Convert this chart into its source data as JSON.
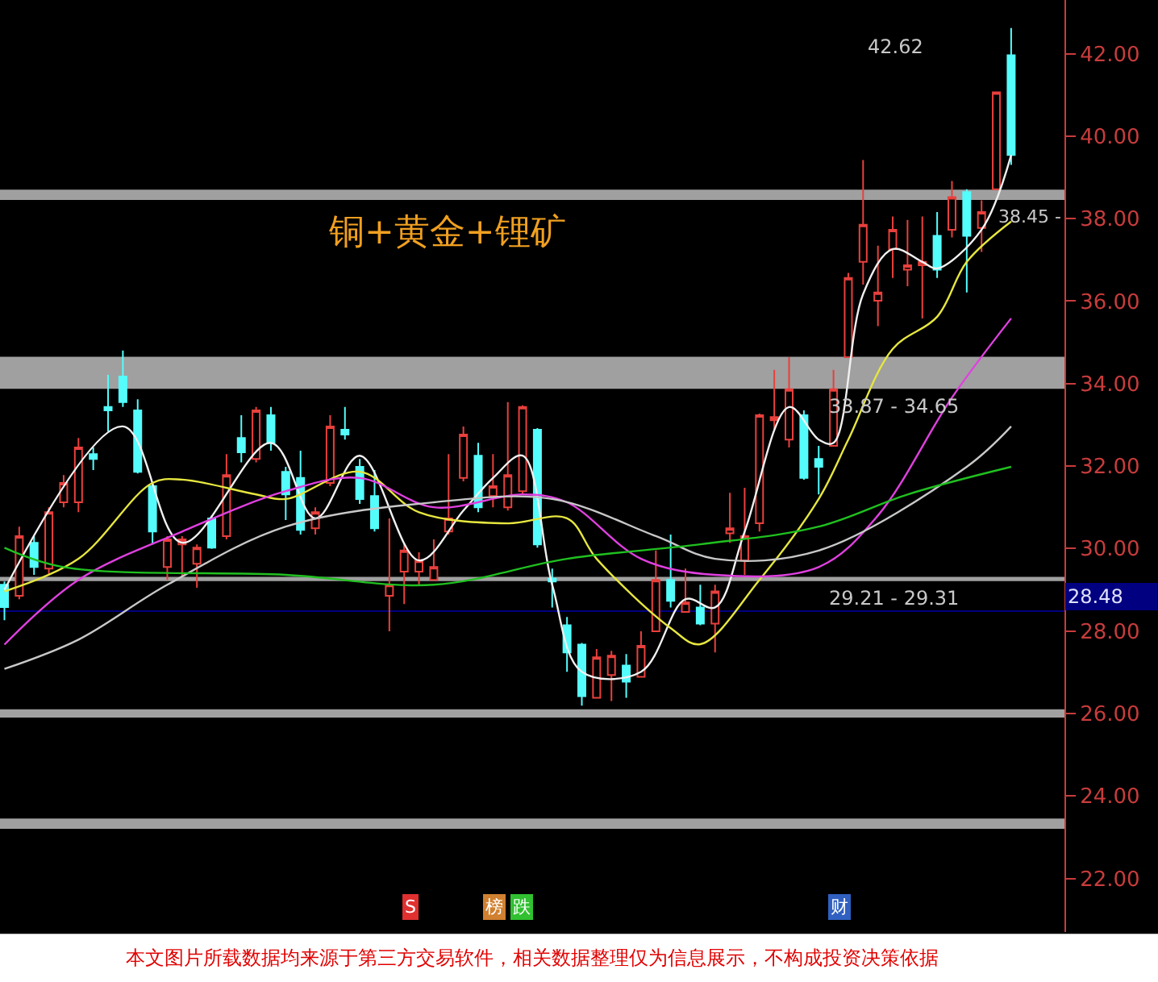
{
  "chart_data": {
    "type": "candlestick",
    "title": "铜+黄金+锂矿",
    "categories": [
      null,
      null,
      null,
      null,
      null,
      null,
      null,
      null,
      null,
      null,
      null,
      null,
      null,
      null,
      null,
      null,
      null,
      null,
      null,
      null,
      null,
      null,
      null,
      null,
      null,
      null,
      null,
      null,
      null,
      null,
      null,
      null,
      null,
      null,
      null,
      null,
      null,
      null,
      null,
      null,
      null,
      null,
      null,
      null,
      null,
      null,
      null,
      null,
      null,
      null,
      null,
      null,
      null,
      null,
      null,
      null,
      null,
      null,
      null,
      null,
      null,
      null,
      null,
      null,
      null,
      null,
      null,
      null,
      null
    ],
    "ohlc": [
      [
        29.12,
        29.2,
        28.26,
        28.58
      ],
      [
        28.85,
        30.53,
        28.77,
        30.3
      ],
      [
        30.14,
        30.3,
        29.36,
        29.55
      ],
      [
        29.51,
        31.0,
        29.36,
        30.88
      ],
      [
        31.12,
        31.78,
        31.0,
        31.59
      ],
      [
        31.12,
        32.68,
        30.88,
        32.45
      ],
      [
        32.29,
        32.45,
        31.9,
        32.17
      ],
      [
        33.43,
        34.21,
        32.84,
        33.35
      ],
      [
        34.17,
        34.8,
        33.43,
        33.55
      ],
      [
        33.35,
        33.62,
        31.82,
        31.86
      ],
      [
        31.51,
        31.59,
        30.1,
        30.41
      ],
      [
        29.55,
        30.3,
        29.24,
        30.22
      ],
      [
        30.1,
        30.3,
        29.32,
        30.22
      ],
      [
        29.63,
        30.1,
        29.05,
        30.02
      ],
      [
        30.73,
        30.8,
        29.99,
        30.02
      ],
      [
        30.3,
        32.29,
        30.22,
        31.78
      ],
      [
        32.68,
        33.23,
        32.09,
        32.33
      ],
      [
        32.17,
        33.43,
        32.09,
        33.35
      ],
      [
        33.23,
        33.43,
        32.37,
        32.56
      ],
      [
        31.86,
        31.98,
        30.69,
        31.31
      ],
      [
        31.71,
        32.37,
        30.34,
        30.45
      ],
      [
        30.49,
        31.0,
        30.34,
        30.88
      ],
      [
        31.59,
        33.23,
        31.51,
        32.96
      ],
      [
        32.88,
        33.43,
        32.64,
        32.76
      ],
      [
        31.98,
        32.17,
        31.08,
        31.2
      ],
      [
        31.27,
        31.9,
        30.41,
        30.49
      ],
      [
        28.85,
        30.73,
        27.99,
        29.12
      ],
      [
        29.44,
        30.14,
        28.65,
        29.95
      ],
      [
        29.44,
        29.91,
        29.12,
        29.71
      ],
      [
        29.24,
        30.22,
        29.24,
        29.55
      ],
      [
        30.41,
        32.29,
        30.34,
        30.73
      ],
      [
        31.71,
        32.96,
        31.63,
        32.76
      ],
      [
        32.25,
        32.56,
        30.88,
        31.0
      ],
      [
        31.27,
        32.29,
        31.0,
        31.51
      ],
      [
        31.0,
        33.55,
        30.92,
        31.78
      ],
      [
        31.39,
        33.47,
        31.31,
        33.43
      ],
      [
        32.88,
        32.92,
        30.02,
        30.1
      ],
      [
        29.27,
        29.51,
        28.57,
        29.2
      ],
      [
        28.14,
        28.34,
        27.01,
        27.48
      ],
      [
        27.67,
        27.71,
        26.19,
        26.42
      ],
      [
        26.38,
        27.56,
        26.38,
        27.36
      ],
      [
        26.93,
        27.52,
        26.3,
        27.4
      ],
      [
        27.16,
        27.44,
        26.38,
        26.77
      ],
      [
        26.89,
        27.99,
        26.89,
        27.64
      ],
      [
        27.99,
        29.95,
        27.99,
        29.24
      ],
      [
        29.24,
        30.34,
        28.57,
        28.73
      ],
      [
        28.46,
        29.51,
        28.46,
        28.69
      ],
      [
        28.57,
        29.12,
        28.14,
        28.18
      ],
      [
        28.18,
        29.12,
        27.48,
        28.96
      ],
      [
        30.37,
        31.35,
        30.14,
        30.49
      ],
      [
        29.71,
        31.47,
        29.36,
        30.3
      ],
      [
        30.61,
        33.27,
        30.41,
        33.23
      ],
      [
        33.11,
        34.33,
        32.88,
        33.19
      ],
      [
        32.64,
        34.64,
        32.45,
        33.86
      ],
      [
        33.23,
        33.35,
        31.67,
        31.71
      ],
      [
        32.17,
        32.49,
        31.31,
        31.98
      ],
      [
        32.49,
        34.33,
        32.49,
        33.86
      ],
      [
        34.64,
        36.68,
        34.64,
        36.56
      ],
      [
        36.95,
        39.42,
        36.4,
        37.85
      ],
      [
        36.01,
        37.34,
        35.39,
        36.21
      ],
      [
        37.26,
        38.05,
        36.56,
        37.73
      ],
      [
        36.76,
        37.97,
        36.36,
        36.87
      ],
      [
        36.87,
        38.05,
        35.58,
        36.95
      ],
      [
        37.58,
        38.16,
        36.56,
        36.76
      ],
      [
        37.73,
        38.91,
        37.54,
        38.52
      ],
      [
        38.64,
        38.71,
        36.21,
        37.58
      ],
      [
        37.77,
        38.44,
        37.19,
        38.16
      ],
      [
        38.71,
        41.06,
        38.71,
        41.06
      ],
      [
        41.96,
        42.62,
        39.3,
        39.54
      ]
    ],
    "series": [
      {
        "type": "line",
        "color": "#f0f0f0",
        "values": [
          29.0,
          null,
          null,
          null,
          null,
          null,
          null,
          null,
          32.96,
          null,
          null,
          null,
          30.14,
          null,
          null,
          null,
          null,
          null,
          32.56,
          null,
          null,
          30.73,
          null,
          null,
          32.25,
          null,
          null,
          null,
          29.71,
          null,
          null,
          30.92,
          null,
          31.71,
          null,
          32.25,
          null,
          29.12,
          null,
          27.01,
          null,
          null,
          null,
          27.01,
          null,
          null,
          28.77,
          null,
          28.57,
          null,
          30.41,
          null,
          null,
          33.43,
          null,
          32.64,
          32.56,
          null,
          36.17,
          null,
          37.26,
          null,
          36.95,
          36.79,
          null,
          null,
          37.73,
          null,
          39.54
        ]
      },
      {
        "type": "line",
        "color": "#e6e640",
        "values": [
          28.96,
          null,
          null,
          null,
          null,
          29.75,
          null,
          null,
          null,
          null,
          31.59,
          null,
          31.67,
          null,
          null,
          null,
          null,
          31.31,
          null,
          31.2,
          null,
          null,
          null,
          null,
          31.86,
          null,
          null,
          null,
          30.88,
          null,
          null,
          null,
          null,
          null,
          30.61,
          null,
          null,
          null,
          30.73,
          null,
          29.75,
          null,
          null,
          null,
          null,
          28.07,
          null,
          27.68,
          null,
          null,
          null,
          29.24,
          null,
          null,
          null,
          31.2,
          null,
          32.64,
          null,
          null,
          34.84,
          null,
          null,
          35.62,
          null,
          36.95,
          null,
          null,
          37.93
        ]
      },
      {
        "type": "line",
        "color": "#e040e0",
        "values": [
          27.67,
          null,
          null,
          null,
          null,
          29.24,
          null,
          null,
          null,
          null,
          null,
          null,
          30.41,
          null,
          null,
          null,
          null,
          null,
          null,
          31.39,
          null,
          null,
          null,
          null,
          31.71,
          null,
          null,
          null,
          null,
          31.0,
          null,
          null,
          null,
          null,
          null,
          31.31,
          null,
          null,
          31.12,
          null,
          null,
          null,
          null,
          29.75,
          null,
          null,
          null,
          null,
          29.36,
          null,
          null,
          null,
          null,
          null,
          null,
          29.55,
          null,
          null,
          null,
          30.8,
          null,
          null,
          null,
          null,
          33.66,
          null,
          null,
          null,
          35.58
        ]
      },
      {
        "type": "line",
        "color": "#c8c8c8",
        "values": [
          27.08,
          null,
          null,
          null,
          null,
          27.79,
          null,
          null,
          null,
          null,
          null,
          29.12,
          null,
          null,
          null,
          null,
          null,
          null,
          null,
          30.53,
          null,
          null,
          null,
          null,
          null,
          null,
          null,
          null,
          null,
          31.12,
          null,
          null,
          null,
          null,
          null,
          null,
          null,
          31.2,
          null,
          null,
          null,
          null,
          null,
          null,
          30.3,
          null,
          null,
          null,
          29.75,
          null,
          null,
          null,
          null,
          null,
          null,
          29.95,
          null,
          null,
          null,
          null,
          null,
          null,
          null,
          null,
          null,
          31.98,
          null,
          null,
          32.96
        ]
      },
      {
        "type": "line",
        "color": "#20c020",
        "values": [
          30.02,
          null,
          null,
          null,
          29.55,
          null,
          null,
          null,
          null,
          null,
          null,
          null,
          null,
          null,
          null,
          null,
          null,
          null,
          null,
          29.36,
          null,
          null,
          null,
          null,
          null,
          null,
          null,
          null,
          null,
          29.12,
          null,
          null,
          null,
          null,
          null,
          null,
          null,
          null,
          29.75,
          null,
          null,
          null,
          null,
          null,
          null,
          null,
          null,
          30.1,
          null,
          null,
          null,
          null,
          null,
          null,
          null,
          30.53,
          null,
          null,
          null,
          null,
          null,
          31.31,
          null,
          null,
          null,
          null,
          null,
          null,
          31.98
        ]
      }
    ],
    "bands": [
      {
        "axis": "y",
        "from": 25.9,
        "to": 26.1,
        "color": "#a0a0a0"
      },
      {
        "axis": "y",
        "from": 23.2,
        "to": 23.45,
        "color": "#a0a0a0"
      },
      {
        "axis": "y",
        "from": 33.87,
        "to": 34.65,
        "label": "33.87 - 34.65",
        "color": "#a0a0a0"
      },
      {
        "axis": "y",
        "from": 29.21,
        "to": 29.31,
        "label": "29.21 - 29.31",
        "color": "#a0a0a0"
      },
      {
        "axis": "y",
        "from": 38.45,
        "to": 38.7,
        "label": "38.45 -",
        "color": "#a0a0a0"
      }
    ],
    "ref_lines": [
      {
        "axis": "y",
        "value": 28.48,
        "label": "28.48",
        "color": "#000080"
      }
    ],
    "annotations": [
      "42.62",
      "S",
      "榜",
      "跌",
      "财",
      "本文图片所载数据均来源于第三方交易软件，相关数据整理仅为信息展示，不构成投资决策依据"
    ],
    "ylim": [
      20.7,
      43.3
    ],
    "yticks": [
      {
        "value": 22,
        "label": "22.00"
      },
      {
        "value": 24,
        "label": "24.00"
      },
      {
        "value": 26,
        "label": "26.00"
      },
      {
        "value": 28,
        "label": "28.00"
      },
      {
        "value": 30,
        "label": "30.00"
      },
      {
        "value": 32,
        "label": "32.00"
      },
      {
        "value": 34,
        "label": "34.00"
      },
      {
        "value": 36,
        "label": "36.00"
      },
      {
        "value": 38,
        "label": "38.00"
      },
      {
        "value": 40,
        "label": "40.00"
      },
      {
        "value": 42,
        "label": "42.00"
      }
    ],
    "tick_labels": "y",
    "grid": false
  }
}
